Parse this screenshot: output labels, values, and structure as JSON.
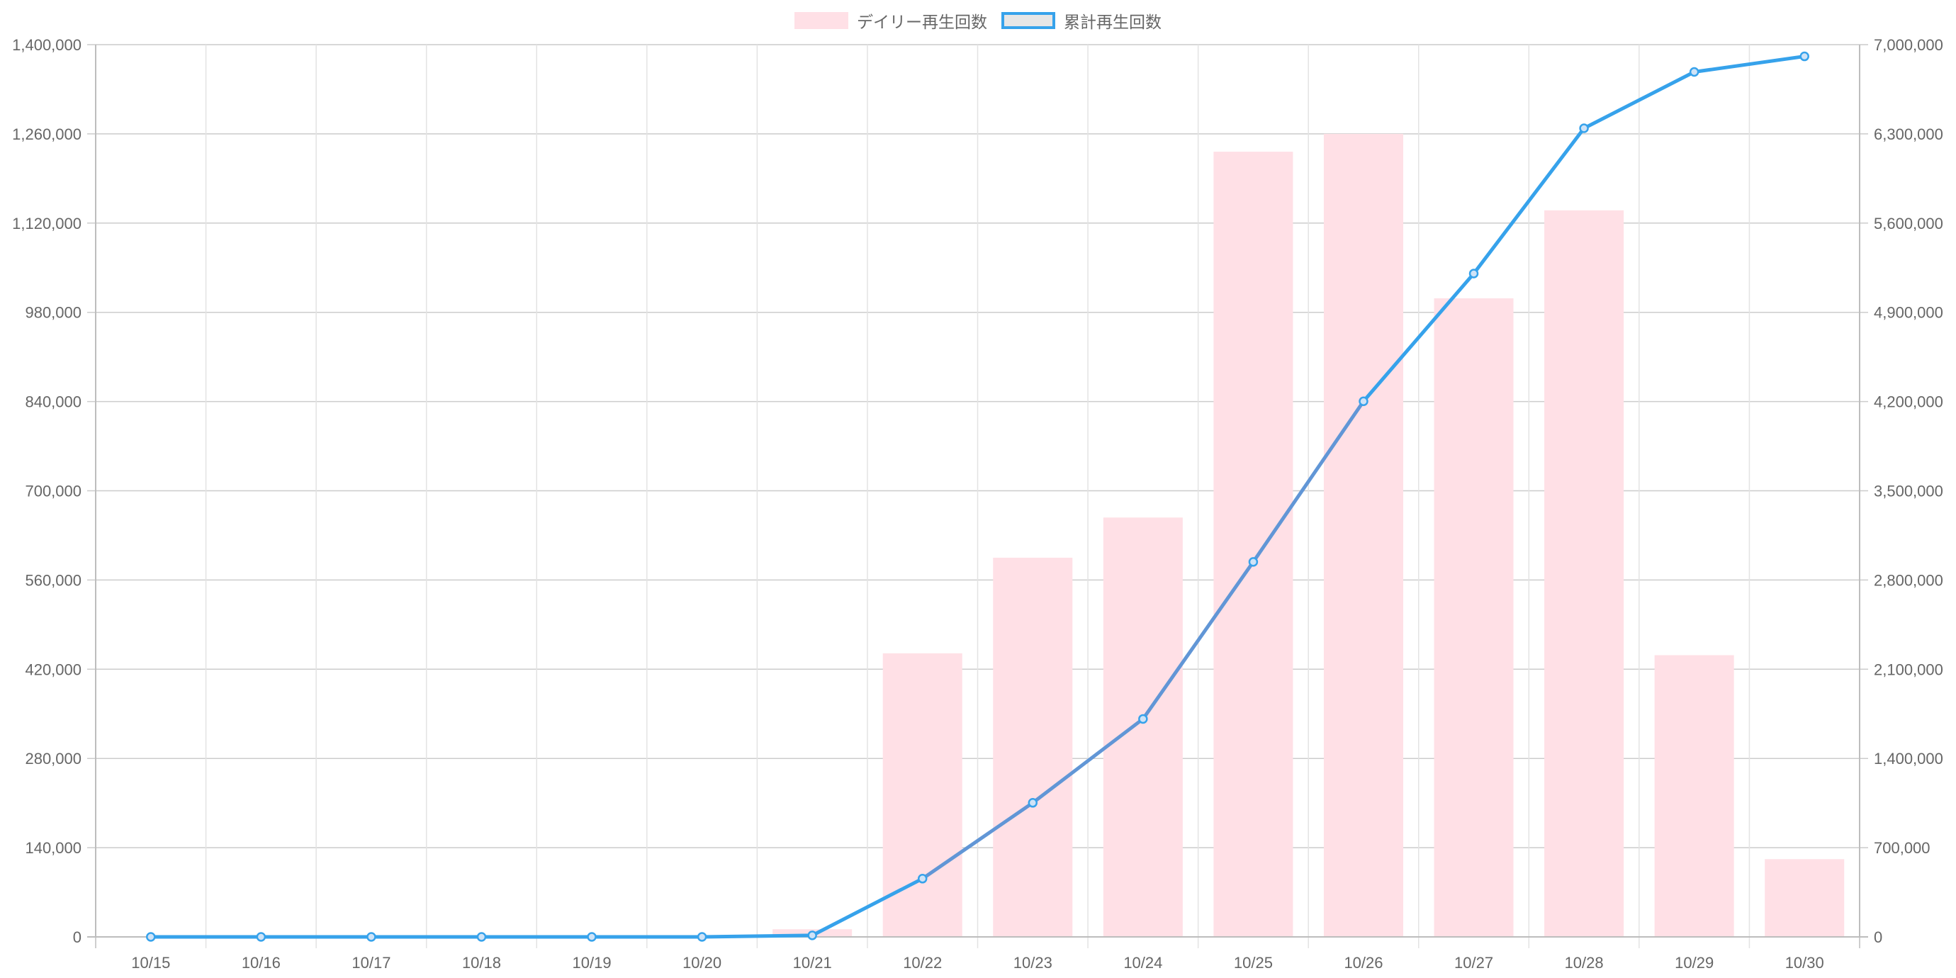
{
  "legend": {
    "bar_label": "デイリー再生回数",
    "line_label": "累計再生回数"
  },
  "colors": {
    "bar_fill": "#ffe0e6",
    "line_stroke": "#36a2eb",
    "line_overlap_stroke": "#6196d6",
    "point_fill": "#cfe3f7",
    "grid": "#d9d9d9",
    "axis": "#bdbdbd",
    "text": "#666666"
  },
  "chart_data": {
    "type": "bar",
    "categories": [
      "10/15",
      "10/16",
      "10/17",
      "10/18",
      "10/19",
      "10/20",
      "10/21",
      "10/22",
      "10/23",
      "10/24",
      "10/25",
      "10/26",
      "10/27",
      "10/28",
      "10/29",
      "10/30"
    ],
    "series": [
      {
        "name": "デイリー再生回数",
        "type": "bar",
        "axis": "left",
        "values": [
          0,
          0,
          0,
          0,
          0,
          0,
          12000,
          445000,
          595000,
          658000,
          1232000,
          1260000,
          1002000,
          1140000,
          442000,
          122000
        ]
      },
      {
        "name": "累計再生回数",
        "type": "line",
        "axis": "right",
        "values": [
          0,
          0,
          0,
          0,
          0,
          0,
          12000,
          457000,
          1052000,
          1710000,
          2942000,
          4202000,
          5204000,
          6344000,
          6786000,
          6908000
        ]
      }
    ],
    "y_left": {
      "min": 0,
      "max": 1400000,
      "ticks": [
        "0",
        "140,000",
        "280,000",
        "420,000",
        "560,000",
        "700,000",
        "840,000",
        "980,000",
        "1,120,000",
        "1,260,000",
        "1,400,000"
      ]
    },
    "y_right": {
      "min": 0,
      "max": 7000000,
      "ticks": [
        "0",
        "700,000",
        "1,400,000",
        "2,100,000",
        "2,800,000",
        "3,500,000",
        "4,200,000",
        "4,900,000",
        "5,600,000",
        "6,300,000",
        "7,000,000"
      ]
    },
    "grid": true,
    "legend_position": "top-center"
  }
}
